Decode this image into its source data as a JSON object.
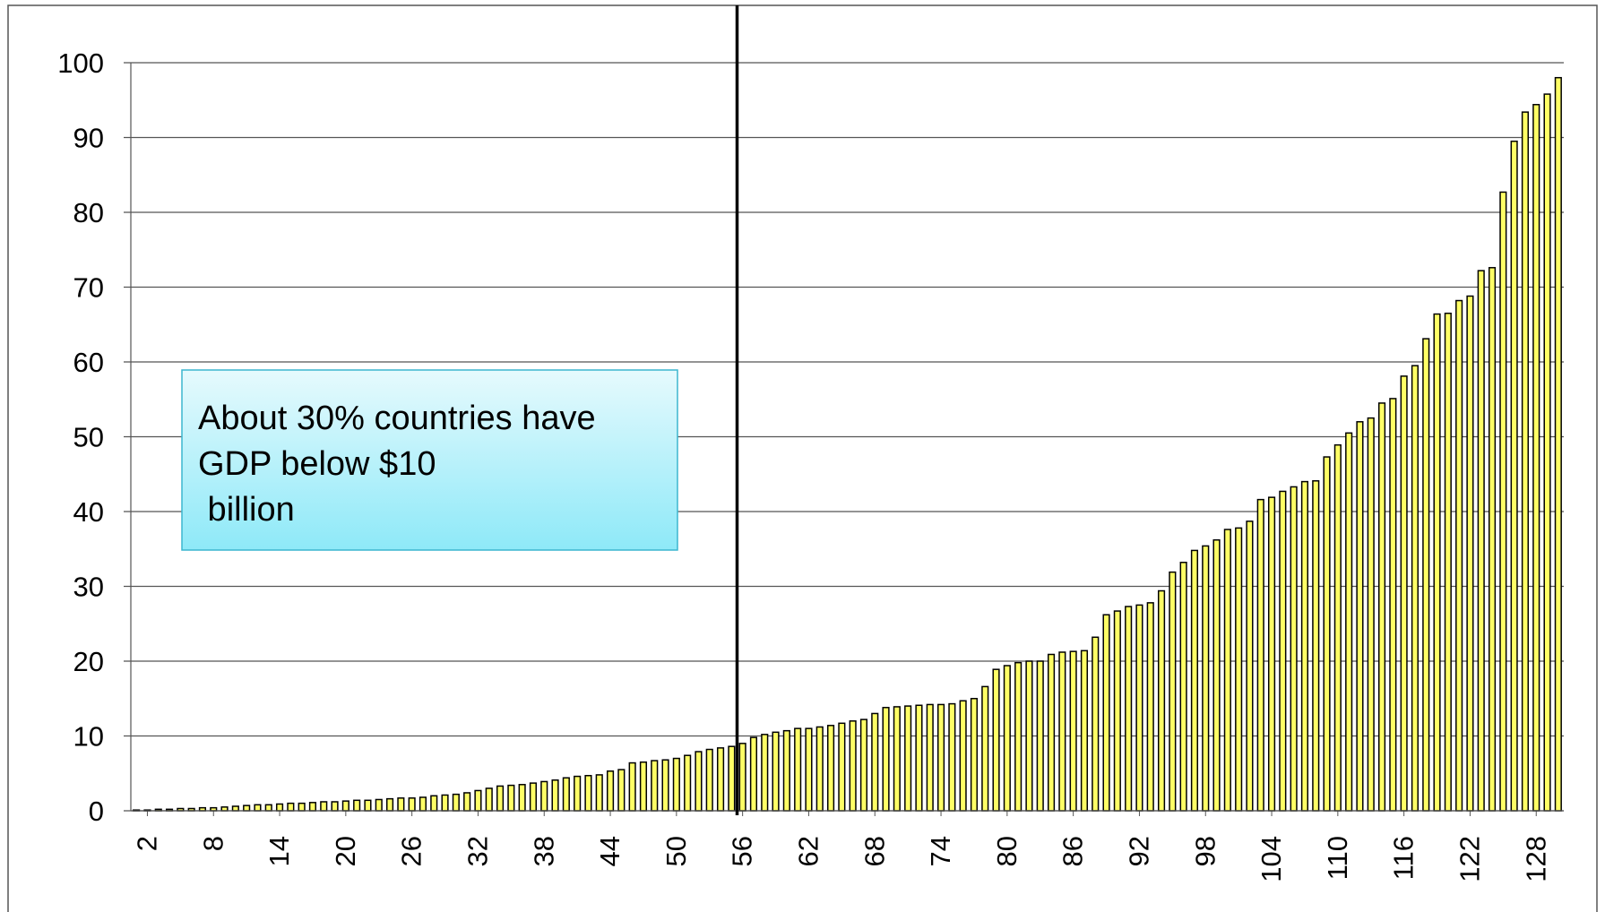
{
  "chart_data": {
    "type": "bar",
    "categories": [
      null,
      "2",
      null,
      null,
      null,
      null,
      null,
      "8",
      null,
      null,
      null,
      null,
      null,
      "14",
      null,
      null,
      null,
      null,
      null,
      "20",
      null,
      null,
      null,
      null,
      null,
      "26",
      null,
      null,
      null,
      null,
      null,
      "32",
      null,
      null,
      null,
      null,
      null,
      "38",
      null,
      null,
      null,
      null,
      null,
      "44",
      null,
      null,
      null,
      null,
      null,
      "50",
      null,
      null,
      null,
      null,
      null,
      "56",
      null,
      null,
      null,
      null,
      null,
      "62",
      null,
      null,
      null,
      null,
      null,
      "68",
      null,
      null,
      null,
      null,
      null,
      "74",
      null,
      null,
      null,
      null,
      null,
      "80",
      null,
      null,
      null,
      null,
      null,
      "86",
      null,
      null,
      null,
      null,
      null,
      "92",
      null,
      null,
      null,
      null,
      null,
      "98",
      null,
      null,
      null,
      null,
      null,
      "104",
      null,
      null,
      null,
      null,
      null,
      "110",
      null,
      null,
      null,
      null,
      null,
      "116",
      null,
      null,
      null,
      null,
      null,
      "122",
      null,
      null,
      null,
      null,
      null,
      "128",
      null,
      null
    ],
    "values": [
      0.1,
      0.1,
      0.2,
      0.2,
      0.3,
      0.3,
      0.4,
      0.4,
      0.5,
      0.6,
      0.7,
      0.8,
      0.8,
      0.9,
      1.0,
      1.0,
      1.1,
      1.2,
      1.2,
      1.3,
      1.4,
      1.4,
      1.5,
      1.6,
      1.7,
      1.7,
      1.8,
      2.0,
      2.1,
      2.2,
      2.4,
      2.7,
      3.0,
      3.3,
      3.4,
      3.5,
      3.7,
      3.9,
      4.1,
      4.4,
      4.6,
      4.7,
      4.8,
      5.3,
      5.5,
      6.4,
      6.5,
      6.7,
      6.8,
      7.0,
      7.4,
      7.9,
      8.2,
      8.4,
      8.6,
      9.0,
      9.8,
      10.2,
      10.5,
      10.7,
      11.0,
      11.0,
      11.2,
      11.4,
      11.7,
      12.0,
      12.2,
      13.0,
      13.8,
      13.9,
      14.0,
      14.1,
      14.2,
      14.2,
      14.3,
      14.7,
      15.0,
      16.6,
      18.9,
      19.4,
      19.8,
      20.0,
      20.0,
      20.9,
      21.2,
      21.3,
      21.4,
      23.2,
      26.2,
      26.7,
      27.3,
      27.5,
      27.8,
      29.4,
      31.9,
      33.2,
      34.8,
      35.4,
      36.2,
      37.6,
      37.8,
      38.7,
      41.6,
      41.9,
      42.7,
      43.3,
      44.0,
      44.1,
      47.3,
      48.9,
      50.5,
      52.0,
      52.5,
      54.5,
      55.1,
      58.1,
      59.5,
      63.1,
      66.4,
      66.5,
      68.2,
      68.8,
      72.2,
      72.6,
      82.7,
      89.5,
      93.4,
      94.4,
      95.8,
      98.0
    ],
    "color": "#ffff66",
    "ylim": [
      0,
      100
    ],
    "yticks": [
      0,
      10,
      20,
      30,
      40,
      50,
      60,
      70,
      80,
      90,
      100
    ],
    "grid": true,
    "reference_line_category": "56",
    "annotation": [
      "About 30% countries have",
      "GDP below $10",
      " billion"
    ]
  }
}
